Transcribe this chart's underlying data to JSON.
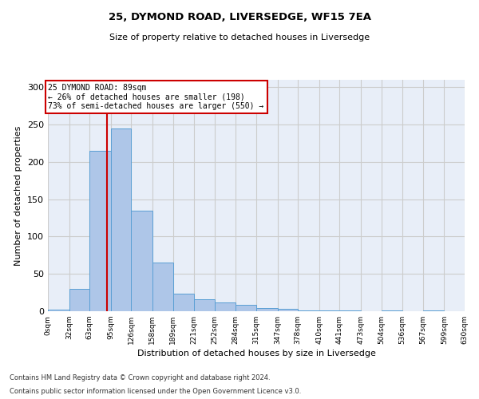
{
  "title1": "25, DYMOND ROAD, LIVERSEDGE, WF15 7EA",
  "title2": "Size of property relative to detached houses in Liversedge",
  "xlabel": "Distribution of detached houses by size in Liversedge",
  "ylabel": "Number of detached properties",
  "bin_edges": [
    0,
    32,
    63,
    95,
    126,
    158,
    189,
    221,
    252,
    284,
    315,
    347,
    378,
    410,
    441,
    473,
    504,
    536,
    567,
    599,
    630
  ],
  "bar_heights": [
    2,
    30,
    215,
    245,
    135,
    65,
    23,
    16,
    12,
    9,
    4,
    3,
    1,
    1,
    1,
    0,
    1,
    0,
    1,
    0
  ],
  "bar_color": "#aec6e8",
  "bar_edge_color": "#5a9fd4",
  "property_size": 89,
  "annotation_text": "25 DYMOND ROAD: 89sqm\n← 26% of detached houses are smaller (198)\n73% of semi-detached houses are larger (550) →",
  "annotation_box_color": "#ffffff",
  "annotation_box_edge_color": "#cc0000",
  "annotation_text_color": "#000000",
  "red_line_color": "#cc0000",
  "ylim": [
    0,
    310
  ],
  "yticks": [
    0,
    50,
    100,
    150,
    200,
    250,
    300
  ],
  "grid_color": "#cccccc",
  "bg_color": "#e8eef8",
  "footer1": "Contains HM Land Registry data © Crown copyright and database right 2024.",
  "footer2": "Contains public sector information licensed under the Open Government Licence v3.0.",
  "tick_labels": [
    "0sqm",
    "32sqm",
    "63sqm",
    "95sqm",
    "126sqm",
    "158sqm",
    "189sqm",
    "221sqm",
    "252sqm",
    "284sqm",
    "315sqm",
    "347sqm",
    "378sqm",
    "410sqm",
    "441sqm",
    "473sqm",
    "504sqm",
    "536sqm",
    "567sqm",
    "599sqm",
    "630sqm"
  ]
}
